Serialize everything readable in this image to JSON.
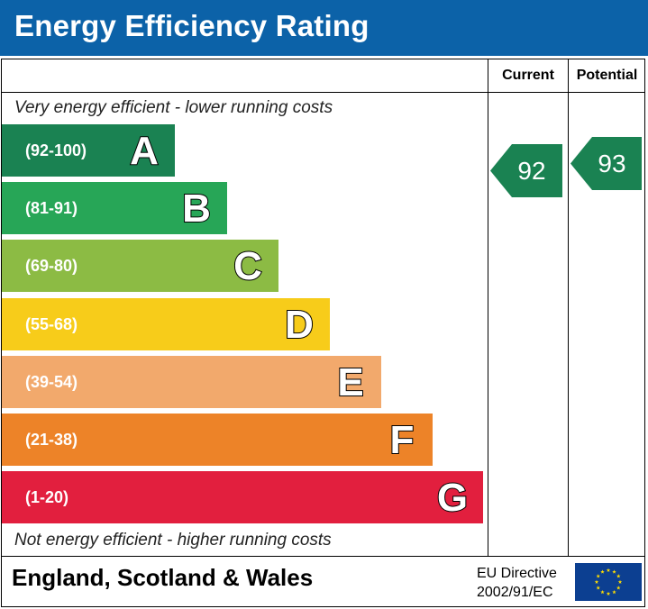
{
  "header": {
    "title": "Energy Efficiency Rating"
  },
  "columns": {
    "current": "Current",
    "potential": "Potential"
  },
  "captions": {
    "top": "Very energy efficient - lower running costs",
    "bottom": "Not energy efficient - higher running costs"
  },
  "bands": [
    {
      "range": "(92-100)",
      "letter": "A",
      "color": "#1a8252"
    },
    {
      "range": "(81-91)",
      "letter": "B",
      "color": "#27a657"
    },
    {
      "range": "(69-80)",
      "letter": "C",
      "color": "#8cbb44"
    },
    {
      "range": "(55-68)",
      "letter": "D",
      "color": "#f7cc1a"
    },
    {
      "range": "(39-54)",
      "letter": "E",
      "color": "#f2a96c"
    },
    {
      "range": "(21-38)",
      "letter": "F",
      "color": "#ed8328"
    },
    {
      "range": "(1-20)",
      "letter": "G",
      "color": "#e21f3e"
    }
  ],
  "ratings": {
    "current": {
      "value": "92",
      "color": "#1a8252"
    },
    "potential": {
      "value": "93",
      "color": "#1a8252"
    }
  },
  "footer": {
    "country": "England, Scotland & Wales",
    "directive_line1": "EU Directive",
    "directive_line2": "2002/91/EC",
    "flag_icon": "eu-flag-icon",
    "flag_color": "#0c3f91",
    "star_color": "#ffdd00"
  }
}
